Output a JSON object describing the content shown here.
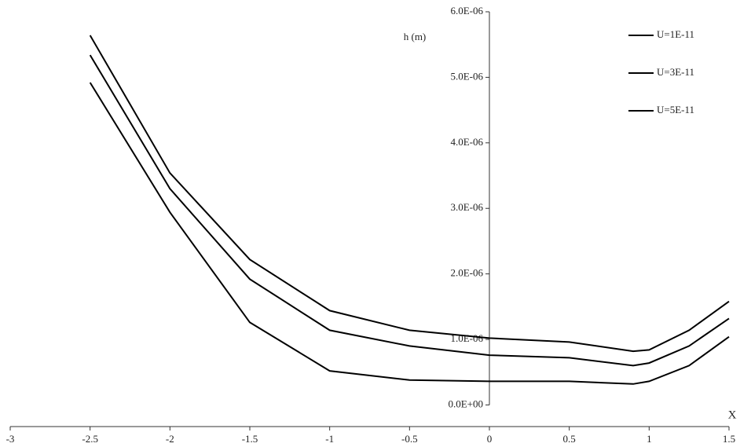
{
  "chart_data": {
    "type": "line",
    "y_label": "h (m)",
    "x_label": "X",
    "x": [
      -2.5,
      -2,
      -1.5,
      -1,
      -0.5,
      0,
      0.5,
      0.9,
      1,
      1.25,
      1.5
    ],
    "series": [
      {
        "name": "U=1E-11",
        "color": "#000000",
        "values": [
          4.92e-06,
          2.94e-06,
          1.26e-06,
          5.2e-07,
          3.8e-07,
          3.6e-07,
          3.6e-07,
          3.2e-07,
          3.6e-07,
          6e-07,
          1.04e-06
        ]
      },
      {
        "name": "U=3E-11",
        "color": "#000000",
        "values": [
          5.34e-06,
          3.3e-06,
          1.92e-06,
          1.14e-06,
          9e-07,
          7.6e-07,
          7.2e-07,
          6e-07,
          6.4e-07,
          9e-07,
          1.32e-06
        ]
      },
      {
        "name": "U=5E-11",
        "color": "#000000",
        "values": [
          5.64e-06,
          3.54e-06,
          2.22e-06,
          1.44e-06,
          1.14e-06,
          1.02e-06,
          9.6e-07,
          8.2e-07,
          8.4e-07,
          1.14e-06,
          1.58e-06
        ]
      }
    ],
    "xlim": [
      -3,
      1.5
    ],
    "xticks": [
      -3,
      -2.5,
      -2,
      -1.5,
      -1,
      -0.5,
      0,
      0.5,
      1,
      1.5
    ],
    "ylim": [
      -3.3e-07,
      6e-06
    ],
    "yticks": [
      {
        "value": 0,
        "label": "0.0E+00"
      },
      {
        "value": 1e-06,
        "label": "1.0E-06"
      },
      {
        "value": 2e-06,
        "label": "2.0E-06"
      },
      {
        "value": 3e-06,
        "label": "3.0E-06"
      },
      {
        "value": 4e-06,
        "label": "4.0E-06"
      },
      {
        "value": 5e-06,
        "label": "5.0E-06"
      },
      {
        "value": 6e-06,
        "label": "6.0E-06"
      }
    ],
    "legend": "top-right"
  }
}
